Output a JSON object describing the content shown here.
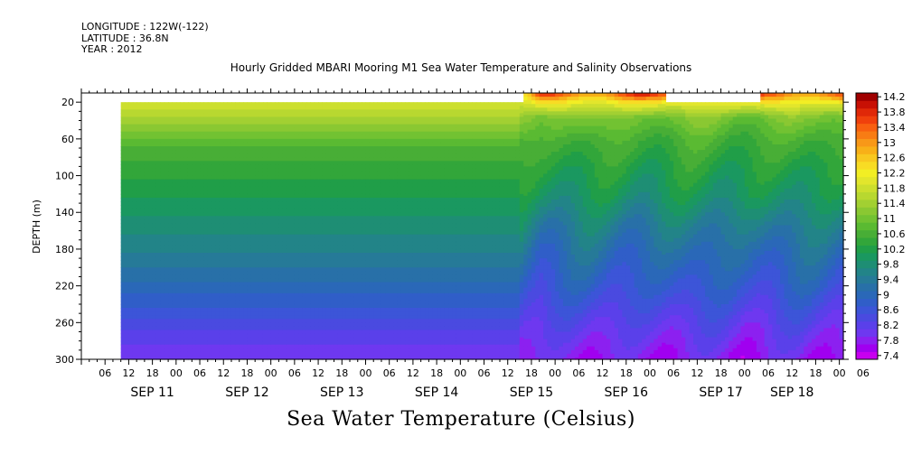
{
  "meta": {
    "longitude": "LONGITUDE : 122W(-122)",
    "latitude": "LATITUDE : 36.8N",
    "year": "YEAR : 2012"
  },
  "bottom_title": "Sea Water Temperature (Celsius)",
  "chart_data": {
    "type": "heatmap",
    "title": "Hourly Gridded MBARI Mooring M1 Sea Water Temperature and Salinity Observations",
    "ylabel": "DEPTH (m)",
    "ylim": [
      300,
      10
    ],
    "y_inverted": true,
    "y_ticks": [
      20,
      60,
      100,
      140,
      180,
      220,
      260,
      300
    ],
    "x_hour_ticks": [
      "06",
      "12",
      "18",
      "00",
      "06",
      "12",
      "18",
      "00",
      "06",
      "12",
      "18",
      "00",
      "06",
      "12",
      "18",
      "00",
      "06",
      "12",
      "18",
      "00",
      "06",
      "12",
      "18",
      "00",
      "06",
      "12",
      "18",
      "00",
      "06",
      "12",
      "18",
      "00",
      "06"
    ],
    "x_day_labels": [
      "SEP 11",
      "SEP 12",
      "SEP 13",
      "SEP 14",
      "SEP 15",
      "SEP 16",
      "SEP 17",
      "SEP 18"
    ],
    "x_range_hours": [
      0,
      193
    ],
    "data_start_hour": 10,
    "colorbar": {
      "levels": [
        7.4,
        7.6,
        7.8,
        8.0,
        8.2,
        8.4,
        8.6,
        8.8,
        9.0,
        9.2,
        9.4,
        9.6,
        9.8,
        10.0,
        10.2,
        10.4,
        10.6,
        10.8,
        11.0,
        11.2,
        11.4,
        11.6,
        11.8,
        12.0,
        12.2,
        12.4,
        12.6,
        12.8,
        13.0,
        13.2,
        13.4,
        13.6,
        13.8,
        14.0,
        14.2,
        14.4
      ],
      "labels": [
        "7.4",
        "7.8",
        "8.2",
        "8.6",
        "9",
        "9.4",
        "9.8",
        "10.2",
        "10.6",
        "11",
        "11.4",
        "11.8",
        "12.2",
        "12.6",
        "13",
        "13.4",
        "13.8",
        "14.2"
      ],
      "colors": [
        "#c800f0",
        "#a000f0",
        "#8c20f0",
        "#6e38f0",
        "#5a40ea",
        "#4a4ae0",
        "#3c55d8",
        "#305ec8",
        "#2a68b8",
        "#2870a8",
        "#267a98",
        "#228488",
        "#1e8e74",
        "#1a9860",
        "#209e48",
        "#32a63a",
        "#48ae36",
        "#5aba32",
        "#72c232",
        "#8ac832",
        "#a2d032",
        "#b8d830",
        "#ccdf2e",
        "#e2e62c",
        "#f2ee24",
        "#f8dc24",
        "#f8c820",
        "#f8b018",
        "#f89818",
        "#f87c14",
        "#f86010",
        "#f0400c",
        "#e02808",
        "#c81004",
        "#a00000"
      ]
    },
    "profile": {
      "depths": [
        10,
        20,
        35,
        60,
        90,
        120,
        150,
        180,
        220,
        260,
        280,
        300
      ],
      "temps_calm": [
        11.9,
        11.9,
        11.6,
        10.9,
        10.5,
        10.2,
        9.9,
        9.6,
        9.1,
        8.5,
        8.2,
        8.0
      ],
      "temps_mixed": [
        13.8,
        12.2,
        11.0,
        10.6,
        10.3,
        10.0,
        9.5,
        9.1,
        8.7,
        8.2,
        8.0,
        7.8
      ]
    },
    "shallow_data_periods_hours": [
      [
        112,
        148
      ],
      [
        172,
        193
      ]
    ]
  }
}
